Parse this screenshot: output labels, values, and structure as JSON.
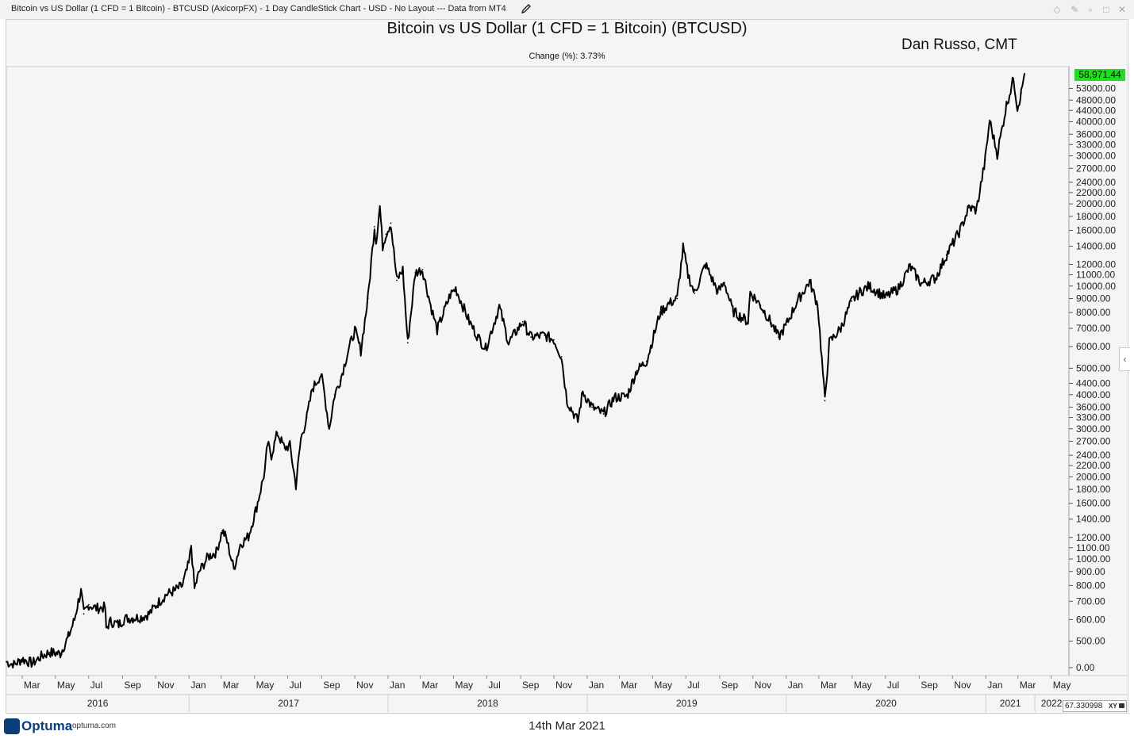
{
  "window": {
    "title": "Bitcoin vs US Dollar (1 CFD = 1 Bitcoin) - BTCUSD (AxicorpFX) - 1 Day CandleStick Chart - USD - No Layout --- Data from MT4",
    "icons": [
      "pencil-icon",
      "diamond-icon",
      "pin-icon",
      "restore-icon",
      "maximize-icon",
      "close-icon"
    ]
  },
  "header": {
    "title": "Bitcoin vs US Dollar (1 CFD = 1 Bitcoin) (BTCUSD)",
    "author": "Dan Russo, CMT",
    "change": "Change (%): 3.73%"
  },
  "footer": {
    "brand": "Optuma",
    "url": "optuma.com",
    "date": "14th Mar 2021",
    "zoom_value": "67.330998",
    "zoom_mode": "XY"
  },
  "chart_data": {
    "type": "line",
    "scale": "log",
    "series": [
      {
        "values": [
          [
            "2016-02-01",
            420
          ],
          [
            "2016-02-15",
            410
          ],
          [
            "2016-03-01",
            430
          ],
          [
            "2016-03-20",
            415
          ],
          [
            "2016-04-05",
            440
          ],
          [
            "2016-04-20",
            455
          ],
          [
            "2016-05-10",
            450
          ],
          [
            "2016-05-25",
            520
          ],
          [
            "2016-06-05",
            600
          ],
          [
            "2016-06-12",
            700
          ],
          [
            "2016-06-17",
            760
          ],
          [
            "2016-06-22",
            630
          ],
          [
            "2016-07-01",
            680
          ],
          [
            "2016-07-15",
            660
          ],
          [
            "2016-07-31",
            665
          ],
          [
            "2016-08-02",
            560
          ],
          [
            "2016-08-10",
            590
          ],
          [
            "2016-08-25",
            575
          ],
          [
            "2016-09-05",
            605
          ],
          [
            "2016-09-20",
            608
          ],
          [
            "2016-10-05",
            612
          ],
          [
            "2016-10-20",
            630
          ],
          [
            "2016-11-05",
            690
          ],
          [
            "2016-11-20",
            740
          ],
          [
            "2016-12-05",
            765
          ],
          [
            "2016-12-20",
            800
          ],
          [
            "2017-01-01",
            970
          ],
          [
            "2017-01-05",
            1120
          ],
          [
            "2017-01-11",
            780
          ],
          [
            "2017-01-20",
            900
          ],
          [
            "2017-02-05",
            1020
          ],
          [
            "2017-02-20",
            1060
          ],
          [
            "2017-03-03",
            1270
          ],
          [
            "2017-03-10",
            1200
          ],
          [
            "2017-03-24",
            920
          ],
          [
            "2017-04-05",
            1130
          ],
          [
            "2017-04-20",
            1210
          ],
          [
            "2017-05-05",
            1550
          ],
          [
            "2017-05-20",
            2100
          ],
          [
            "2017-05-25",
            2650
          ],
          [
            "2017-06-01",
            2400
          ],
          [
            "2017-06-12",
            2900
          ],
          [
            "2017-06-25",
            2550
          ],
          [
            "2017-07-05",
            2600
          ],
          [
            "2017-07-16",
            1860
          ],
          [
            "2017-07-25",
            2750
          ],
          [
            "2017-08-05",
            3300
          ],
          [
            "2017-08-15",
            4200
          ],
          [
            "2017-08-31",
            4750
          ],
          [
            "2017-09-05",
            4200
          ],
          [
            "2017-09-15",
            3000
          ],
          [
            "2017-09-25",
            4000
          ],
          [
            "2017-10-05",
            4500
          ],
          [
            "2017-10-20",
            5800
          ],
          [
            "2017-11-01",
            6900
          ],
          [
            "2017-11-12",
            5800
          ],
          [
            "2017-11-25",
            9000
          ],
          [
            "2017-12-07",
            16500
          ],
          [
            "2017-12-10",
            14500
          ],
          [
            "2017-12-17",
            19600
          ],
          [
            "2017-12-22",
            14000
          ],
          [
            "2017-12-28",
            15500
          ],
          [
            "2018-01-06",
            17000
          ],
          [
            "2018-01-17",
            10500
          ],
          [
            "2018-01-28",
            11500
          ],
          [
            "2018-02-06",
            6200
          ],
          [
            "2018-02-20",
            11200
          ],
          [
            "2018-03-05",
            11500
          ],
          [
            "2018-03-20",
            8500
          ],
          [
            "2018-04-01",
            6900
          ],
          [
            "2018-04-25",
            9300
          ],
          [
            "2018-05-05",
            9800
          ],
          [
            "2018-05-30",
            7400
          ],
          [
            "2018-06-15",
            6500
          ],
          [
            "2018-06-29",
            5900
          ],
          [
            "2018-07-24",
            8400
          ],
          [
            "2018-08-10",
            6200
          ],
          [
            "2018-09-05",
            7400
          ],
          [
            "2018-09-20",
            6500
          ],
          [
            "2018-10-15",
            6600
          ],
          [
            "2018-11-01",
            6350
          ],
          [
            "2018-11-15",
            5500
          ],
          [
            "2018-11-25",
            3800
          ],
          [
            "2018-12-15",
            3200
          ],
          [
            "2018-12-24",
            4100
          ],
          [
            "2019-01-10",
            3600
          ],
          [
            "2019-01-31",
            3400
          ],
          [
            "2019-02-20",
            3900
          ],
          [
            "2019-03-15",
            3950
          ],
          [
            "2019-04-02",
            4900
          ],
          [
            "2019-04-20",
            5300
          ],
          [
            "2019-05-15",
            8000
          ],
          [
            "2019-05-30",
            8600
          ],
          [
            "2019-06-15",
            9000
          ],
          [
            "2019-06-26",
            13800
          ],
          [
            "2019-07-05",
            11000
          ],
          [
            "2019-07-17",
            9400
          ],
          [
            "2019-08-06",
            12000
          ],
          [
            "2019-08-29",
            9500
          ],
          [
            "2019-09-10",
            10300
          ],
          [
            "2019-09-25",
            8100
          ],
          [
            "2019-10-23",
            7400
          ],
          [
            "2019-10-27",
            9500
          ],
          [
            "2019-11-15",
            8500
          ],
          [
            "2019-12-05",
            7300
          ],
          [
            "2019-12-18",
            6500
          ],
          [
            "2020-01-01",
            7200
          ],
          [
            "2020-01-20",
            8700
          ],
          [
            "2020-02-13",
            10400
          ],
          [
            "2020-02-28",
            8500
          ],
          [
            "2020-03-12",
            3800
          ],
          [
            "2020-03-20",
            6200
          ],
          [
            "2020-04-10",
            7000
          ],
          [
            "2020-04-30",
            8800
          ],
          [
            "2020-05-15",
            9500
          ],
          [
            "2020-06-01",
            10000
          ],
          [
            "2020-07-01",
            9100
          ],
          [
            "2020-07-25",
            9800
          ],
          [
            "2020-08-15",
            11800
          ],
          [
            "2020-09-05",
            10200
          ],
          [
            "2020-10-01",
            10700
          ],
          [
            "2020-10-21",
            13000
          ],
          [
            "2020-11-15",
            16000
          ],
          [
            "2020-12-01",
            19400
          ],
          [
            "2020-12-15",
            19000
          ],
          [
            "2020-12-31",
            29000
          ],
          [
            "2021-01-08",
            40500
          ],
          [
            "2021-01-22",
            30500
          ],
          [
            "2021-02-08",
            46000
          ],
          [
            "2021-02-21",
            57500
          ],
          [
            "2021-02-28",
            45000
          ],
          [
            "2021-03-07",
            51000
          ],
          [
            "2021-03-13",
            60000
          ]
        ]
      }
    ],
    "last_price": "58,971.44",
    "yaxis": {
      "ticks": [
        "53000.00",
        "48000.00",
        "44000.00",
        "40000.00",
        "36000.00",
        "33000.00",
        "30000.00",
        "27000.00",
        "24000.00",
        "22000.00",
        "20000.00",
        "18000.00",
        "16000.00",
        "14000.00",
        "12000.00",
        "11000.00",
        "10000.00",
        "9000.00",
        "8000.00",
        "7000.00",
        "6000.00",
        "5000.00",
        "4400.00",
        "4000.00",
        "3600.00",
        "3300.00",
        "3000.00",
        "2700.00",
        "2400.00",
        "2200.00",
        "2000.00",
        "1800.00",
        "1600.00",
        "1400.00",
        "1200.00",
        "1100.00",
        "1000.00",
        "900.00",
        "800.00",
        "700.00",
        "600.00",
        "500.00",
        "0.00"
      ]
    },
    "xaxis": {
      "month_labels": [
        {
          "date": "2016-03-01",
          "label": "Mar"
        },
        {
          "date": "2016-05-01",
          "label": "May"
        },
        {
          "date": "2016-07-01",
          "label": "Jul"
        },
        {
          "date": "2016-09-01",
          "label": "Sep"
        },
        {
          "date": "2016-11-01",
          "label": "Nov"
        },
        {
          "date": "2017-01-01",
          "label": "Jan"
        },
        {
          "date": "2017-03-01",
          "label": "Mar"
        },
        {
          "date": "2017-05-01",
          "label": "May"
        },
        {
          "date": "2017-07-01",
          "label": "Jul"
        },
        {
          "date": "2017-09-01",
          "label": "Sep"
        },
        {
          "date": "2017-11-01",
          "label": "Nov"
        },
        {
          "date": "2018-01-01",
          "label": "Jan"
        },
        {
          "date": "2018-03-01",
          "label": "Mar"
        },
        {
          "date": "2018-05-01",
          "label": "May"
        },
        {
          "date": "2018-07-01",
          "label": "Jul"
        },
        {
          "date": "2018-09-01",
          "label": "Sep"
        },
        {
          "date": "2018-11-01",
          "label": "Nov"
        },
        {
          "date": "2019-01-01",
          "label": "Jan"
        },
        {
          "date": "2019-03-01",
          "label": "Mar"
        },
        {
          "date": "2019-05-01",
          "label": "May"
        },
        {
          "date": "2019-07-01",
          "label": "Jul"
        },
        {
          "date": "2019-09-01",
          "label": "Sep"
        },
        {
          "date": "2019-11-01",
          "label": "Nov"
        },
        {
          "date": "2020-01-01",
          "label": "Jan"
        },
        {
          "date": "2020-03-01",
          "label": "Mar"
        },
        {
          "date": "2020-05-01",
          "label": "May"
        },
        {
          "date": "2020-07-01",
          "label": "Jul"
        },
        {
          "date": "2020-09-01",
          "label": "Sep"
        },
        {
          "date": "2020-11-01",
          "label": "Nov"
        },
        {
          "date": "2021-01-01",
          "label": "Jan"
        },
        {
          "date": "2021-03-01",
          "label": "Mar"
        },
        {
          "date": "2021-05-01",
          "label": "May"
        }
      ],
      "year_labels": [
        {
          "label": "2016",
          "start": "2016-02-01",
          "end": "2017-01-01"
        },
        {
          "label": "2017",
          "start": "2017-01-01",
          "end": "2018-01-01"
        },
        {
          "label": "2018",
          "start": "2018-01-01",
          "end": "2019-01-01"
        },
        {
          "label": "2019",
          "start": "2019-01-01",
          "end": "2020-01-01"
        },
        {
          "label": "2020",
          "start": "2020-01-01",
          "end": "2021-01-01"
        },
        {
          "label": "2021",
          "start": "2021-01-01",
          "end": "2021-04-01"
        },
        {
          "label": "2022",
          "start": "2021-04-01",
          "end": "2021-06-01"
        }
      ]
    },
    "colors": {
      "line": "#000000",
      "badge": "#22dd22",
      "background": "#f5f5f5"
    }
  }
}
